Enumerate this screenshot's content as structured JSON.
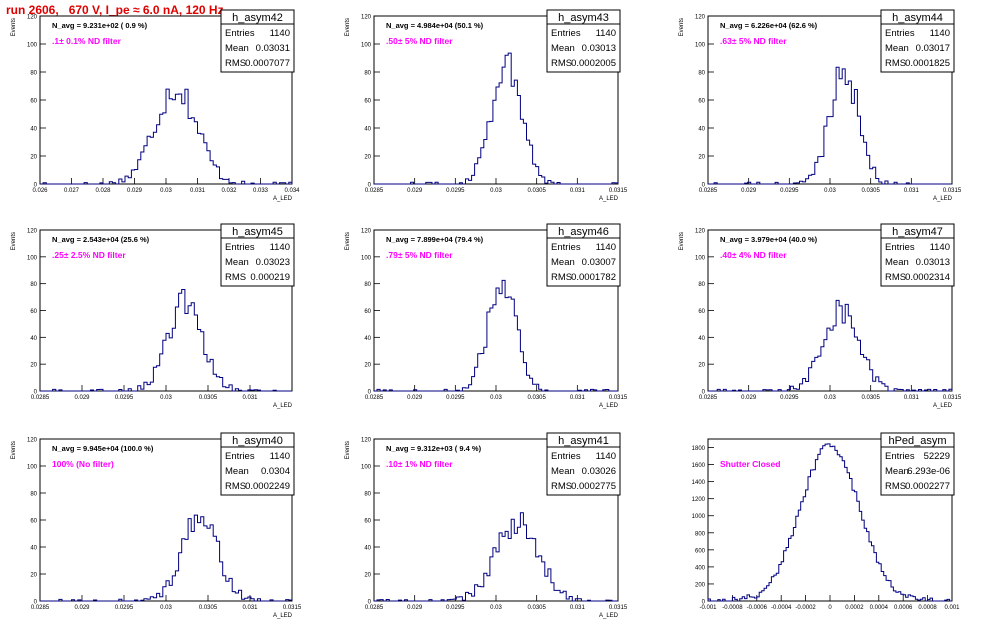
{
  "page": {
    "title": "run 2606,   670 V, I_pe ≈ 6.0 nA, 120 Hz",
    "title_color": "#e00000",
    "hist_color": "#000080",
    "annotation_color": "#ff00ff"
  },
  "chart_data": [
    {
      "type": "bar",
      "name": "h_asym42",
      "stats": {
        "entries": "1140",
        "mean": "0.03031",
        "rms": "0.0007077"
      },
      "navg": "N_avg = 9.231e+02 ( 0.9 %)",
      "filter": ".1± 0.1% ND filter",
      "xlabel": "A_LED",
      "ylabel": "Events",
      "xlim": [
        0.026,
        0.034
      ],
      "ylim": [
        0,
        120
      ],
      "xticks": [
        "0.026",
        "0.027",
        "0.028",
        "0.029",
        "0.03",
        "0.031",
        "0.032",
        "0.033",
        "0.034"
      ],
      "yticks": [
        "0",
        "20",
        "40",
        "60",
        "80",
        "100",
        "120"
      ],
      "mean": 0.03031,
      "rms": 0.0007077,
      "peak": 69
    },
    {
      "type": "bar",
      "name": "h_asym43",
      "stats": {
        "entries": "1140",
        "mean": "0.03013",
        "rms": "0.0002005"
      },
      "navg": "N_avg = 4.984e+04 (50.1 %)",
      "filter": ".50± 5% ND filter",
      "xlabel": "A_LED",
      "ylabel": "Events",
      "xlim": [
        0.0285,
        0.0315
      ],
      "ylim": [
        0,
        120
      ],
      "xticks": [
        "0.0285",
        "0.029",
        "0.0295",
        "0.03",
        "0.0305",
        "0.031",
        "0.0315"
      ],
      "yticks": [
        "0",
        "20",
        "40",
        "60",
        "80",
        "100",
        "120"
      ],
      "mean": 0.03013,
      "rms": 0.0002005,
      "peak": 86
    },
    {
      "type": "bar",
      "name": "h_asym44",
      "stats": {
        "entries": "1140",
        "mean": "0.03017",
        "rms": "0.0001825"
      },
      "navg": "N_avg = 6.226e+04 (62.6 %)",
      "filter": ".63± 5% ND filter",
      "xlabel": "A_LED",
      "ylabel": "Events",
      "xlim": [
        0.0285,
        0.0315
      ],
      "ylim": [
        0,
        120
      ],
      "xticks": [
        "0.0285",
        "0.029",
        "0.0295",
        "0.03",
        "0.0305",
        "0.031",
        "0.0315"
      ],
      "yticks": [
        "0",
        "20",
        "40",
        "60",
        "80",
        "100",
        "120"
      ],
      "mean": 0.03017,
      "rms": 0.0001825,
      "peak": 84
    },
    {
      "type": "bar",
      "name": "h_asym45",
      "stats": {
        "entries": "1140",
        "mean": "0.03023",
        "rms": "0.000219"
      },
      "navg": "N_avg = 2.543e+04 (25.6 %)",
      "filter": ".25± 2.5% ND filter",
      "xlabel": "A_LED",
      "ylabel": "Events",
      "xlim": [
        0.0285,
        0.0315
      ],
      "ylim": [
        0,
        120
      ],
      "xticks": [
        "0.0285",
        "0.029",
        "0.0295",
        "0.03",
        "0.0305",
        "0.031"
      ],
      "yticks": [
        "0",
        "20",
        "40",
        "60",
        "80",
        "100",
        "120"
      ],
      "mean": 0.03023,
      "rms": 0.000219,
      "peak": 66
    },
    {
      "type": "bar",
      "name": "h_asym46",
      "stats": {
        "entries": "1140",
        "mean": "0.03007",
        "rms": "0.0001782"
      },
      "navg": "N_avg = 7.899e+04 (79.4 %)",
      "filter": ".79± 5% ND filter",
      "xlabel": "A_LED",
      "ylabel": "Events",
      "xlim": [
        0.0285,
        0.0315
      ],
      "ylim": [
        0,
        120
      ],
      "xticks": [
        "0.0285",
        "0.029",
        "0.0295",
        "0.03",
        "0.0305",
        "0.031",
        "0.0315"
      ],
      "yticks": [
        "0",
        "20",
        "40",
        "60",
        "80",
        "100",
        "120"
      ],
      "mean": 0.03007,
      "rms": 0.0001782,
      "peak": 83
    },
    {
      "type": "bar",
      "name": "h_asym47",
      "stats": {
        "entries": "1140",
        "mean": "0.03013",
        "rms": "0.0002314"
      },
      "navg": "N_avg = 3.979e+04 (40.0 %)",
      "filter": ".40± 4% ND filter",
      "xlabel": "A_LED",
      "ylabel": "Events",
      "xlim": [
        0.0285,
        0.0315
      ],
      "ylim": [
        0,
        120
      ],
      "xticks": [
        "0.0285",
        "0.029",
        "0.0295",
        "0.03",
        "0.0305",
        "0.031",
        "0.0315"
      ],
      "yticks": [
        "0",
        "20",
        "40",
        "60",
        "80",
        "100",
        "120"
      ],
      "mean": 0.03013,
      "rms": 0.0002314,
      "peak": 61
    },
    {
      "type": "bar",
      "name": "h_asym40",
      "stats": {
        "entries": "1140",
        "mean": "0.0304",
        "rms": "0.0002249"
      },
      "navg": "N_avg = 9.945e+04 (100.0 %)",
      "filter": "100% (No filter)",
      "xlabel": "A_LED",
      "ylabel": "Events",
      "xlim": [
        0.0285,
        0.0315
      ],
      "ylim": [
        0,
        120
      ],
      "xticks": [
        "0.0285",
        "0.029",
        "0.0295",
        "0.03",
        "0.0305",
        "0.031",
        "0.0315"
      ],
      "yticks": [
        "0",
        "20",
        "40",
        "60",
        "80",
        "100",
        "120"
      ],
      "mean": 0.0304,
      "rms": 0.0002249,
      "peak": 62
    },
    {
      "type": "bar",
      "name": "h_asym41",
      "stats": {
        "entries": "1140",
        "mean": "0.03026",
        "rms": "0.0002775"
      },
      "navg": "N_avg = 9.312e+03 ( 9.4 %)",
      "filter": ".10± 1% ND filter",
      "xlabel": "A_LED",
      "ylabel": "Events",
      "xlim": [
        0.0285,
        0.0315
      ],
      "ylim": [
        0,
        120
      ],
      "xticks": [
        "0.0285",
        "0.029",
        "0.0295",
        "0.03",
        "0.0305",
        "0.031",
        "0.0315"
      ],
      "yticks": [
        "0",
        "20",
        "40",
        "60",
        "80",
        "100",
        "120"
      ],
      "mean": 0.03026,
      "rms": 0.0002775,
      "peak": 57
    },
    {
      "type": "bar",
      "name": "hPed_asym",
      "stats": {
        "entries": "52229",
        "mean": "6.293e-06",
        "rms": "0.0002277"
      },
      "navg": "",
      "filter": "Shutter Closed",
      "xlabel": "",
      "ylabel": "",
      "xlim": [
        -0.001,
        0.001
      ],
      "ylim": [
        0,
        1900
      ],
      "xticks": [
        "-0.001",
        "-0.0008",
        "-0.0006",
        "-0.0004",
        "-0.0002",
        "0",
        "0.0002",
        "0.0004",
        "0.0006",
        "0.0008",
        "0.001"
      ],
      "yticks": [
        "0",
        "200",
        "400",
        "600",
        "800",
        "1000",
        "1200",
        "1400",
        "1600",
        "1800"
      ],
      "mean": 0.0,
      "rms": 0.0002277,
      "peak": 1830
    }
  ]
}
